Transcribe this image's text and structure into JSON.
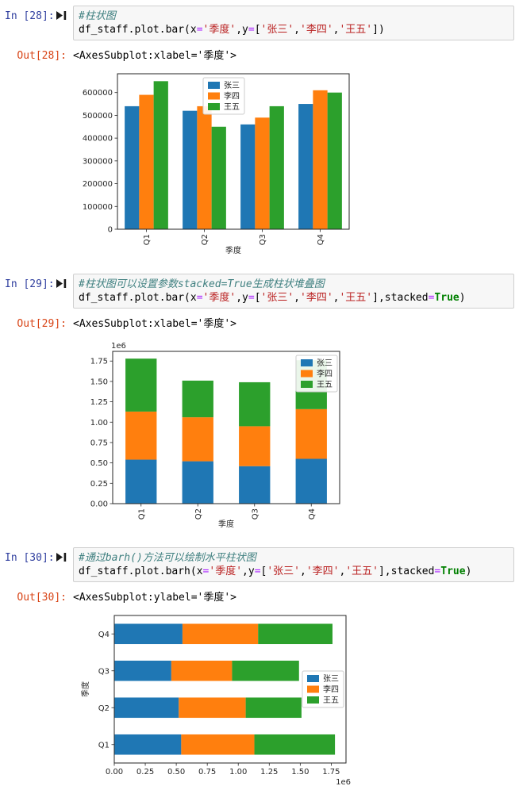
{
  "notebook": {
    "cells": [
      {
        "in_label": "In [28]:",
        "out_label": "Out[28]:",
        "out_text": "<AxesSubplot:xlabel='季度'>",
        "code_tokens": [
          [
            {
              "t": "#柱状图",
              "c": "com"
            }
          ],
          [
            {
              "t": "df_staff.plot.bar(x",
              "c": "p"
            },
            {
              "t": "=",
              "c": "op"
            },
            {
              "t": "'季度'",
              "c": "str"
            },
            {
              "t": ",y",
              "c": "p"
            },
            {
              "t": "=",
              "c": "op"
            },
            {
              "t": "[",
              "c": "p"
            },
            {
              "t": "'张三'",
              "c": "str"
            },
            {
              "t": ",",
              "c": "p"
            },
            {
              "t": "'李四'",
              "c": "str"
            },
            {
              "t": ",",
              "c": "p"
            },
            {
              "t": "'王五'",
              "c": "str"
            },
            {
              "t": "])",
              "c": "p"
            }
          ]
        ]
      },
      {
        "in_label": "In [29]:",
        "out_label": "Out[29]:",
        "out_text": "<AxesSubplot:xlabel='季度'>",
        "code_tokens": [
          [
            {
              "t": "#柱状图可以设置参数stacked=True生成柱状堆叠图",
              "c": "com"
            }
          ],
          [
            {
              "t": "df_staff.plot.bar(x",
              "c": "p"
            },
            {
              "t": "=",
              "c": "op"
            },
            {
              "t": "'季度'",
              "c": "str"
            },
            {
              "t": ",y",
              "c": "p"
            },
            {
              "t": "=",
              "c": "op"
            },
            {
              "t": "[",
              "c": "p"
            },
            {
              "t": "'张三'",
              "c": "str"
            },
            {
              "t": ",",
              "c": "p"
            },
            {
              "t": "'李四'",
              "c": "str"
            },
            {
              "t": ",",
              "c": "p"
            },
            {
              "t": "'王五'",
              "c": "str"
            },
            {
              "t": "],stacked",
              "c": "p"
            },
            {
              "t": "=",
              "c": "op"
            },
            {
              "t": "True",
              "c": "kw"
            },
            {
              "t": ")",
              "c": "p"
            }
          ]
        ]
      },
      {
        "in_label": "In [30]:",
        "out_label": "Out[30]:",
        "out_text": "<AxesSubplot:ylabel='季度'>",
        "code_tokens": [
          [
            {
              "t": "#通过barh()方法可以绘制水平柱状图",
              "c": "com"
            }
          ],
          [
            {
              "t": "df_staff.plot.barh(x",
              "c": "p"
            },
            {
              "t": "=",
              "c": "op"
            },
            {
              "t": "'季度'",
              "c": "str"
            },
            {
              "t": ",y",
              "c": "p"
            },
            {
              "t": "=",
              "c": "op"
            },
            {
              "t": "[",
              "c": "p"
            },
            {
              "t": "'张三'",
              "c": "str"
            },
            {
              "t": ",",
              "c": "p"
            },
            {
              "t": "'李四'",
              "c": "str"
            },
            {
              "t": ",",
              "c": "p"
            },
            {
              "t": "'王五'",
              "c": "str"
            },
            {
              "t": "],stacked",
              "c": "p"
            },
            {
              "t": "=",
              "c": "op"
            },
            {
              "t": "True",
              "c": "kw"
            },
            {
              "t": ")",
              "c": "p"
            }
          ]
        ]
      }
    ]
  },
  "colors": {
    "series": {
      "张三": "#1f77b4",
      "李四": "#ff7f0e",
      "王五": "#2ca02c"
    },
    "in_prompt": "#303f9f",
    "out_prompt": "#d84315"
  },
  "chart_data": [
    {
      "type": "bar",
      "stacked": false,
      "xlabel": "季度",
      "ylabel": "",
      "categories": [
        "Q1",
        "Q2",
        "Q3",
        "Q4"
      ],
      "series": [
        {
          "name": "张三",
          "values": [
            540000,
            520000,
            460000,
            550000
          ]
        },
        {
          "name": "李四",
          "values": [
            590000,
            540000,
            490000,
            610000
          ]
        },
        {
          "name": "王五",
          "values": [
            650000,
            450000,
            540000,
            600000
          ]
        }
      ],
      "ylim": [
        0,
        682500
      ],
      "yticks": [
        {
          "v": 0,
          "label": "0"
        },
        {
          "v": 100000,
          "label": "100000"
        },
        {
          "v": 200000,
          "label": "200000"
        },
        {
          "v": 300000,
          "label": "300000"
        },
        {
          "v": 400000,
          "label": "400000"
        },
        {
          "v": 500000,
          "label": "500000"
        },
        {
          "v": 600000,
          "label": "600000"
        }
      ],
      "grid": false,
      "legend": {
        "labels": [
          "张三",
          "李四",
          "王五"
        ],
        "loc": "upper center"
      }
    },
    {
      "type": "bar",
      "stacked": true,
      "xlabel": "季度",
      "ylabel": "",
      "categories": [
        "Q1",
        "Q2",
        "Q3",
        "Q4"
      ],
      "series": [
        {
          "name": "张三",
          "values": [
            540000,
            520000,
            460000,
            550000
          ]
        },
        {
          "name": "李四",
          "values": [
            590000,
            540000,
            490000,
            610000
          ]
        },
        {
          "name": "王五",
          "values": [
            650000,
            450000,
            540000,
            600000
          ]
        }
      ],
      "ylim": [
        0,
        1869000
      ],
      "yticks": [
        {
          "v": 0,
          "label": "0.00"
        },
        {
          "v": 250000,
          "label": "0.25"
        },
        {
          "v": 500000,
          "label": "0.50"
        },
        {
          "v": 750000,
          "label": "0.75"
        },
        {
          "v": 1000000,
          "label": "1.00"
        },
        {
          "v": 1250000,
          "label": "1.25"
        },
        {
          "v": 1500000,
          "label": "1.50"
        },
        {
          "v": 1750000,
          "label": "1.75"
        }
      ],
      "axis_offset_text": "1e6",
      "grid": false,
      "legend": {
        "labels": [
          "张三",
          "李四",
          "王五"
        ],
        "loc": "upper right"
      }
    },
    {
      "type": "barh",
      "stacked": true,
      "xlabel": "",
      "ylabel": "季度",
      "categories": [
        "Q1",
        "Q2",
        "Q3",
        "Q4"
      ],
      "series": [
        {
          "name": "张三",
          "values": [
            540000,
            520000,
            460000,
            550000
          ]
        },
        {
          "name": "李四",
          "values": [
            590000,
            540000,
            490000,
            610000
          ]
        },
        {
          "name": "王五",
          "values": [
            650000,
            450000,
            540000,
            600000
          ]
        }
      ],
      "xlim": [
        0,
        1869000
      ],
      "xticks": [
        {
          "v": 0,
          "label": "0.00"
        },
        {
          "v": 250000,
          "label": "0.25"
        },
        {
          "v": 500000,
          "label": "0.50"
        },
        {
          "v": 750000,
          "label": "0.75"
        },
        {
          "v": 1000000,
          "label": "1.00"
        },
        {
          "v": 1250000,
          "label": "1.25"
        },
        {
          "v": 1500000,
          "label": "1.50"
        },
        {
          "v": 1750000,
          "label": "1.75"
        }
      ],
      "axis_offset_text": "1e6",
      "grid": false,
      "legend": {
        "labels": [
          "张三",
          "李四",
          "王五"
        ],
        "loc": "center right"
      }
    }
  ]
}
